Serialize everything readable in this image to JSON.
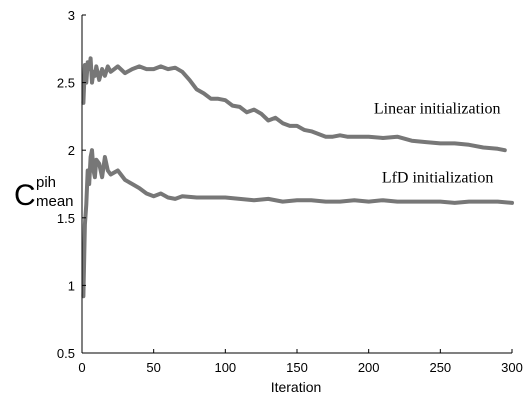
{
  "chart_data": {
    "type": "line",
    "xlabel": "Iteration",
    "ylabel": {
      "base": "C",
      "superscript": "pih",
      "subscript": "mean"
    },
    "xlim": [
      0,
      300
    ],
    "ylim": [
      0.5,
      3
    ],
    "xticks": [
      "0",
      "50",
      "100",
      "150",
      "200",
      "250",
      "300"
    ],
    "yticks": [
      "0.5",
      "1",
      "1.5",
      "2",
      "2.5",
      "3"
    ],
    "line_color": "#777777",
    "series": [
      {
        "name": "Linear initialization",
        "x": [
          1,
          2,
          3,
          4,
          5,
          6,
          7,
          8,
          9,
          10,
          12,
          14,
          16,
          18,
          20,
          25,
          30,
          35,
          40,
          45,
          50,
          55,
          60,
          65,
          70,
          75,
          80,
          85,
          90,
          95,
          100,
          105,
          110,
          115,
          120,
          125,
          130,
          135,
          140,
          145,
          150,
          155,
          160,
          165,
          170,
          175,
          180,
          185,
          190,
          200,
          210,
          220,
          230,
          240,
          250,
          260,
          270,
          280,
          290,
          295
        ],
        "y": [
          2.35,
          2.63,
          2.5,
          2.65,
          2.6,
          2.68,
          2.5,
          2.58,
          2.55,
          2.62,
          2.52,
          2.6,
          2.55,
          2.62,
          2.58,
          2.62,
          2.57,
          2.6,
          2.62,
          2.6,
          2.6,
          2.62,
          2.6,
          2.61,
          2.58,
          2.52,
          2.45,
          2.42,
          2.38,
          2.38,
          2.37,
          2.33,
          2.32,
          2.28,
          2.3,
          2.27,
          2.22,
          2.24,
          2.2,
          2.18,
          2.18,
          2.15,
          2.14,
          2.12,
          2.1,
          2.1,
          2.11,
          2.1,
          2.1,
          2.1,
          2.09,
          2.1,
          2.07,
          2.06,
          2.05,
          2.05,
          2.04,
          2.02,
          2.01,
          2.0
        ]
      },
      {
        "name": "LfD initialization",
        "x": [
          1,
          2,
          3,
          4,
          5,
          6,
          7,
          8,
          9,
          10,
          12,
          14,
          16,
          18,
          20,
          25,
          30,
          35,
          40,
          45,
          50,
          55,
          60,
          65,
          70,
          80,
          90,
          100,
          110,
          120,
          130,
          140,
          150,
          160,
          170,
          180,
          190,
          200,
          210,
          220,
          230,
          240,
          250,
          260,
          270,
          280,
          290,
          300
        ],
        "y": [
          0.92,
          1.45,
          1.6,
          1.85,
          1.75,
          1.95,
          2.0,
          1.85,
          1.8,
          1.93,
          1.9,
          1.8,
          1.95,
          1.85,
          1.82,
          1.85,
          1.78,
          1.75,
          1.72,
          1.68,
          1.66,
          1.68,
          1.65,
          1.64,
          1.66,
          1.65,
          1.65,
          1.65,
          1.64,
          1.63,
          1.64,
          1.62,
          1.63,
          1.63,
          1.62,
          1.62,
          1.63,
          1.62,
          1.63,
          1.62,
          1.62,
          1.62,
          1.62,
          1.61,
          1.62,
          1.62,
          1.62,
          1.61
        ]
      }
    ]
  }
}
